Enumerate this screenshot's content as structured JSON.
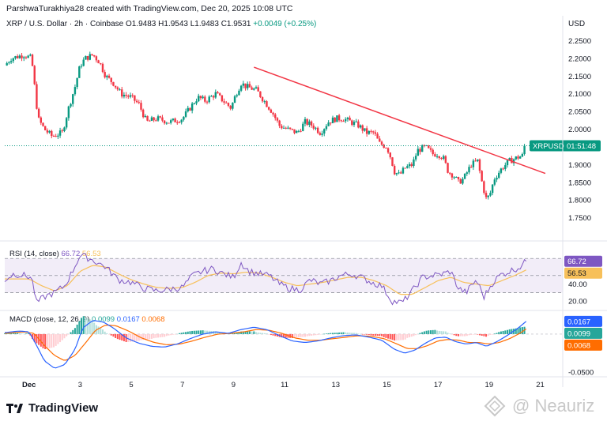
{
  "header": {
    "text": "ParshwaTurakhiya28 created with TradingView.com, Dec 20, 2025 10:08 UTC"
  },
  "legend": {
    "symbol": "XRP / U.S. Dollar · 2h · Coinbase",
    "open": "O1.9483",
    "high": "H1.9543",
    "low": "L1.9483",
    "close": "C1.9531",
    "change": "+0.0049 (+0.25%)"
  },
  "axis_currency": "USD",
  "price_tag": {
    "symbol": "XRPUSD",
    "countdown": "01:51:48"
  },
  "colors": {
    "up": "#089981",
    "down": "#f23645",
    "trendline": "#f23645",
    "rsi_line": "#7e57c2",
    "rsi_ma": "#f7c05a",
    "rsi_band": "#ede7f6",
    "macd_line": "#2962ff",
    "signal_line": "#ff6d00"
  },
  "chart_data": [
    {
      "type": "candlestick",
      "title": "XRP / U.S. Dollar · 2h · Coinbase",
      "ylim": [
        1.7,
        2.28
      ],
      "yticks": [
        "2.2500",
        "2.2000",
        "2.1500",
        "2.1000",
        "2.0500",
        "2.0000",
        "1.9000",
        "1.8500",
        "1.8000",
        "1.7500"
      ],
      "ytick_values": [
        2.25,
        2.2,
        2.15,
        2.1,
        2.05,
        2.0,
        1.9,
        1.85,
        1.8,
        1.75
      ],
      "xticks": [
        "Dec",
        "3",
        "5",
        "7",
        "9",
        "11",
        "13",
        "15",
        "17",
        "19",
        "21"
      ],
      "xtick_pos": [
        1,
        3,
        5,
        7,
        9,
        11,
        13,
        15,
        17,
        19,
        21
      ],
      "xlim": [
        0.05,
        21.85
      ],
      "last_price": 1.9531,
      "anchors": [
        [
          0.05,
          2.18
        ],
        [
          0.3,
          2.2
        ],
        [
          0.8,
          2.21
        ],
        [
          1.1,
          2.2
        ],
        [
          1.25,
          2.1
        ],
        [
          1.35,
          2.03
        ],
        [
          1.6,
          2.0
        ],
        [
          1.9,
          1.98
        ],
        [
          2.3,
          1.99
        ],
        [
          2.55,
          2.06
        ],
        [
          2.8,
          2.12
        ],
        [
          3.0,
          2.18
        ],
        [
          3.2,
          2.2
        ],
        [
          3.5,
          2.21
        ],
        [
          3.75,
          2.19
        ],
        [
          4.0,
          2.15
        ],
        [
          4.3,
          2.13
        ],
        [
          4.6,
          2.1
        ],
        [
          5.0,
          2.09
        ],
        [
          5.3,
          2.07
        ],
        [
          5.6,
          2.02
        ],
        [
          6.0,
          2.03
        ],
        [
          6.5,
          2.02
        ],
        [
          7.0,
          2.03
        ],
        [
          7.3,
          2.06
        ],
        [
          7.6,
          2.09
        ],
        [
          7.9,
          2.08
        ],
        [
          8.3,
          2.1
        ],
        [
          8.6,
          2.08
        ],
        [
          8.9,
          2.06
        ],
        [
          9.1,
          2.1
        ],
        [
          9.3,
          2.13
        ],
        [
          9.5,
          2.12
        ],
        [
          9.9,
          2.11
        ],
        [
          10.2,
          2.08
        ],
        [
          10.5,
          2.05
        ],
        [
          10.8,
          2.01
        ],
        [
          11.1,
          2.0
        ],
        [
          11.5,
          1.99
        ],
        [
          11.8,
          2.02
        ],
        [
          12.1,
          2.01
        ],
        [
          12.4,
          1.99
        ],
        [
          12.7,
          2.02
        ],
        [
          13.0,
          2.03
        ],
        [
          13.3,
          2.03
        ],
        [
          13.6,
          2.02
        ],
        [
          13.9,
          2.01
        ],
        [
          14.2,
          1.99
        ],
        [
          14.5,
          1.99
        ],
        [
          14.7,
          1.96
        ],
        [
          15.0,
          1.95
        ],
        [
          15.15,
          1.92
        ],
        [
          15.3,
          1.88
        ],
        [
          15.5,
          1.87
        ],
        [
          15.7,
          1.89
        ],
        [
          16.0,
          1.9
        ],
        [
          16.2,
          1.94
        ],
        [
          16.5,
          1.95
        ],
        [
          16.8,
          1.93
        ],
        [
          17.0,
          1.93
        ],
        [
          17.2,
          1.92
        ],
        [
          17.4,
          1.88
        ],
        [
          17.6,
          1.87
        ],
        [
          17.8,
          1.85
        ],
        [
          18.0,
          1.86
        ],
        [
          18.3,
          1.9
        ],
        [
          18.55,
          1.91
        ],
        [
          18.75,
          1.84
        ],
        [
          18.9,
          1.8
        ],
        [
          19.05,
          1.82
        ],
        [
          19.2,
          1.86
        ],
        [
          19.5,
          1.89
        ],
        [
          19.8,
          1.91
        ],
        [
          20.1,
          1.92
        ],
        [
          20.3,
          1.925
        ],
        [
          20.45,
          1.953
        ]
      ],
      "trendline": {
        "from": [
          9.8,
          2.175
        ],
        "to": [
          21.2,
          1.875
        ]
      }
    },
    {
      "type": "line",
      "title": "RSI (14, close)",
      "series": [
        {
          "name": "RSI",
          "last": "66.72"
        },
        {
          "name": "RSI-based MA",
          "last": "56.53"
        }
      ],
      "ylim": [
        10,
        85
      ],
      "yticks": [
        "40.00",
        "20.00"
      ],
      "ytick_values": [
        40,
        20
      ],
      "bands": [
        70,
        50,
        30
      ],
      "rsi_anchors": [
        [
          0.05,
          45
        ],
        [
          0.4,
          52
        ],
        [
          0.8,
          50
        ],
        [
          1.1,
          48
        ],
        [
          1.3,
          18
        ],
        [
          1.6,
          25
        ],
        [
          2.0,
          30
        ],
        [
          2.4,
          38
        ],
        [
          2.7,
          55
        ],
        [
          3.0,
          74
        ],
        [
          3.2,
          72
        ],
        [
          3.5,
          68
        ],
        [
          4.0,
          60
        ],
        [
          4.5,
          45
        ],
        [
          5.0,
          42
        ],
        [
          5.5,
          35
        ],
        [
          6.0,
          32
        ],
        [
          6.5,
          34
        ],
        [
          7.0,
          36
        ],
        [
          7.4,
          50
        ],
        [
          7.8,
          55
        ],
        [
          8.2,
          58
        ],
        [
          8.6,
          52
        ],
        [
          9.0,
          48
        ],
        [
          9.3,
          65
        ],
        [
          9.6,
          55
        ],
        [
          10.0,
          52
        ],
        [
          10.4,
          50
        ],
        [
          10.8,
          40
        ],
        [
          11.2,
          35
        ],
        [
          11.6,
          33
        ],
        [
          12.0,
          45
        ],
        [
          12.4,
          40
        ],
        [
          12.8,
          44
        ],
        [
          13.2,
          50
        ],
        [
          13.6,
          52
        ],
        [
          14.0,
          48
        ],
        [
          14.4,
          42
        ],
        [
          14.8,
          38
        ],
        [
          15.2,
          20
        ],
        [
          15.6,
          18
        ],
        [
          16.0,
          32
        ],
        [
          16.4,
          48
        ],
        [
          16.8,
          50
        ],
        [
          17.2,
          52
        ],
        [
          17.5,
          55
        ],
        [
          17.8,
          35
        ],
        [
          18.1,
          30
        ],
        [
          18.5,
          45
        ],
        [
          18.8,
          25
        ],
        [
          19.1,
          40
        ],
        [
          19.4,
          50
        ],
        [
          19.8,
          55
        ],
        [
          20.2,
          60
        ],
        [
          20.45,
          66.72
        ]
      ],
      "ma_anchors": [
        [
          0.05,
          46
        ],
        [
          1.0,
          46
        ],
        [
          1.5,
          38
        ],
        [
          2.0,
          32
        ],
        [
          2.5,
          38
        ],
        [
          3.0,
          55
        ],
        [
          3.5,
          62
        ],
        [
          4.0,
          60
        ],
        [
          4.5,
          52
        ],
        [
          5.0,
          45
        ],
        [
          5.5,
          40
        ],
        [
          6.0,
          36
        ],
        [
          6.5,
          35
        ],
        [
          7.0,
          36
        ],
        [
          7.5,
          42
        ],
        [
          8.0,
          50
        ],
        [
          8.5,
          53
        ],
        [
          9.0,
          52
        ],
        [
          9.5,
          54
        ],
        [
          10.0,
          53
        ],
        [
          10.5,
          48
        ],
        [
          11.0,
          42
        ],
        [
          11.5,
          38
        ],
        [
          12.0,
          40
        ],
        [
          12.5,
          42
        ],
        [
          13.0,
          45
        ],
        [
          13.5,
          48
        ],
        [
          14.0,
          48
        ],
        [
          14.5,
          44
        ],
        [
          15.0,
          38
        ],
        [
          15.5,
          28
        ],
        [
          16.0,
          28
        ],
        [
          16.5,
          36
        ],
        [
          17.0,
          44
        ],
        [
          17.5,
          48
        ],
        [
          18.0,
          42
        ],
        [
          18.5,
          40
        ],
        [
          19.0,
          38
        ],
        [
          19.5,
          44
        ],
        [
          20.0,
          50
        ],
        [
          20.45,
          56.53
        ]
      ]
    },
    {
      "type": "bar",
      "title": "MACD (close, 12, 26, 9)",
      "series": [
        {
          "name": "Histogram",
          "last": "0.0099"
        },
        {
          "name": "MACD",
          "last": "0.0167"
        },
        {
          "name": "Signal",
          "last": "0.0068"
        }
      ],
      "ylim": [
        -0.055,
        0.03
      ],
      "yticks": [
        "-0.0500"
      ],
      "ytick_values": [
        -0.05
      ],
      "macd_anchors": [
        [
          0.05,
          0.002
        ],
        [
          0.6,
          0.004
        ],
        [
          1.0,
          0.003
        ],
        [
          1.3,
          -0.015
        ],
        [
          1.6,
          -0.035
        ],
        [
          2.0,
          -0.045
        ],
        [
          2.4,
          -0.04
        ],
        [
          2.8,
          -0.02
        ],
        [
          3.1,
          0.008
        ],
        [
          3.5,
          0.018
        ],
        [
          3.9,
          0.016
        ],
        [
          4.3,
          0.008
        ],
        [
          4.8,
          -0.005
        ],
        [
          5.3,
          -0.012
        ],
        [
          5.8,
          -0.016
        ],
        [
          6.3,
          -0.017
        ],
        [
          6.8,
          -0.013
        ],
        [
          7.3,
          -0.006
        ],
        [
          7.8,
          0.0
        ],
        [
          8.3,
          0.003
        ],
        [
          8.8,
          0.001
        ],
        [
          9.3,
          0.006
        ],
        [
          9.8,
          0.009
        ],
        [
          10.3,
          0.006
        ],
        [
          10.8,
          -0.002
        ],
        [
          11.3,
          -0.009
        ],
        [
          11.8,
          -0.011
        ],
        [
          12.3,
          -0.009
        ],
        [
          12.8,
          -0.005
        ],
        [
          13.3,
          -0.002
        ],
        [
          13.8,
          -0.001
        ],
        [
          14.3,
          -0.004
        ],
        [
          14.8,
          -0.008
        ],
        [
          15.3,
          -0.02
        ],
        [
          15.7,
          -0.025
        ],
        [
          16.1,
          -0.021
        ],
        [
          16.5,
          -0.012
        ],
        [
          16.9,
          -0.005
        ],
        [
          17.3,
          -0.004
        ],
        [
          17.7,
          -0.01
        ],
        [
          18.1,
          -0.013
        ],
        [
          18.5,
          -0.011
        ],
        [
          18.9,
          -0.016
        ],
        [
          19.3,
          -0.01
        ],
        [
          19.7,
          -0.002
        ],
        [
          20.1,
          0.007
        ],
        [
          20.45,
          0.0167
        ]
      ],
      "signal_anchors": [
        [
          0.05,
          0.001
        ],
        [
          0.8,
          0.003
        ],
        [
          1.2,
          0.001
        ],
        [
          1.6,
          -0.015
        ],
        [
          2.0,
          -0.028
        ],
        [
          2.4,
          -0.035
        ],
        [
          2.8,
          -0.028
        ],
        [
          3.2,
          -0.012
        ],
        [
          3.6,
          0.005
        ],
        [
          4.0,
          0.012
        ],
        [
          4.4,
          0.011
        ],
        [
          4.9,
          0.004
        ],
        [
          5.4,
          -0.005
        ],
        [
          5.9,
          -0.011
        ],
        [
          6.4,
          -0.014
        ],
        [
          6.9,
          -0.013
        ],
        [
          7.4,
          -0.009
        ],
        [
          7.9,
          -0.004
        ],
        [
          8.4,
          0.0
        ],
        [
          8.9,
          0.001
        ],
        [
          9.4,
          0.003
        ],
        [
          9.9,
          0.006
        ],
        [
          10.4,
          0.005
        ],
        [
          10.9,
          0.001
        ],
        [
          11.4,
          -0.005
        ],
        [
          11.9,
          -0.008
        ],
        [
          12.4,
          -0.008
        ],
        [
          12.9,
          -0.006
        ],
        [
          13.4,
          -0.004
        ],
        [
          13.9,
          -0.002
        ],
        [
          14.4,
          -0.003
        ],
        [
          14.9,
          -0.006
        ],
        [
          15.4,
          -0.013
        ],
        [
          15.8,
          -0.019
        ],
        [
          16.2,
          -0.019
        ],
        [
          16.6,
          -0.015
        ],
        [
          17.0,
          -0.009
        ],
        [
          17.4,
          -0.007
        ],
        [
          17.8,
          -0.008
        ],
        [
          18.2,
          -0.011
        ],
        [
          18.6,
          -0.011
        ],
        [
          19.0,
          -0.013
        ],
        [
          19.4,
          -0.011
        ],
        [
          19.8,
          -0.006
        ],
        [
          20.2,
          0.001
        ],
        [
          20.45,
          0.0068
        ]
      ]
    }
  ],
  "branding": {
    "logo_text": "TradingView",
    "watermark": "@ Neauriz"
  }
}
